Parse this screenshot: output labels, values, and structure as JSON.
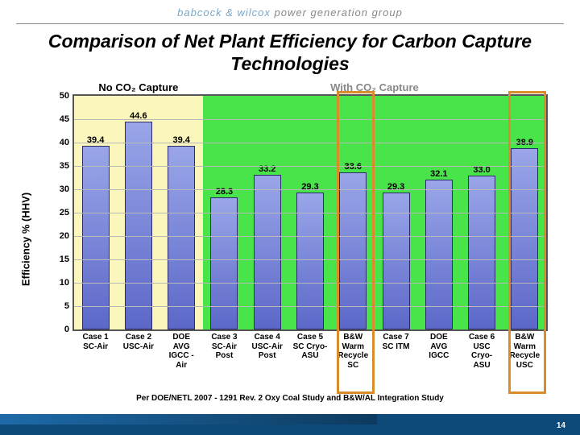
{
  "brand_left": "babcock & wilcox",
  "brand_right": " power generation group",
  "title": "Comparison of Net Plant Efficiency for Carbon Capture Technologies",
  "ylabel": "Efficiency % (HHV)",
  "ylim": [
    0,
    50
  ],
  "yticks": [
    0,
    5,
    10,
    15,
    20,
    25,
    30,
    35,
    40,
    45,
    50
  ],
  "regions": [
    {
      "label": "No CO₂ Capture",
      "color": "#fbf6bb",
      "start": 0,
      "end": 3,
      "labelColor": "#000"
    },
    {
      "label": "With CO₂ Capture",
      "color": "#49e449",
      "start": 3,
      "end": 11,
      "labelColor": "#888"
    }
  ],
  "bar_colors": {
    "fill_top": "#9aa6e8",
    "fill_bot": "#5c68c8",
    "edge": "#2a2a6a"
  },
  "highlight_color": "#d98c2a",
  "grid_color": "#b8b8b8",
  "bars": [
    {
      "label": "Case 1\nSC-Air",
      "value": 39.4,
      "highlight": false
    },
    {
      "label": "Case 2\nUSC-Air",
      "value": 44.6,
      "highlight": false
    },
    {
      "label": "DOE\nAVG\nIGCC -\nAir",
      "value": 39.4,
      "highlight": false
    },
    {
      "label": "Case 3\nSC-Air\nPost",
      "value": 28.3,
      "highlight": false
    },
    {
      "label": "Case 4\nUSC-Air\nPost",
      "value": 33.2,
      "highlight": false
    },
    {
      "label": "Case 5\nSC Cryo-\nASU",
      "value": 29.3,
      "highlight": false
    },
    {
      "label": "B&W\nWarm\nRecycle\nSC",
      "value": 33.6,
      "highlight": true
    },
    {
      "label": "Case 7\nSC ITM",
      "value": 29.3,
      "highlight": false
    },
    {
      "label": "DOE\nAVG\nIGCC",
      "value": 32.1,
      "highlight": false
    },
    {
      "label": "Case 6\nUSC\nCryo-\nASU",
      "value": 33.0,
      "highlight": false
    },
    {
      "label": "B&W\nWarm\nRecycle\nUSC",
      "value": 38.9,
      "highlight": true
    }
  ],
  "footer_note": "Per DOE/NETL 2007 - 1291 Rev. 2 Oxy Coal Study and B&W/AL Integration Study",
  "page_num": "14"
}
